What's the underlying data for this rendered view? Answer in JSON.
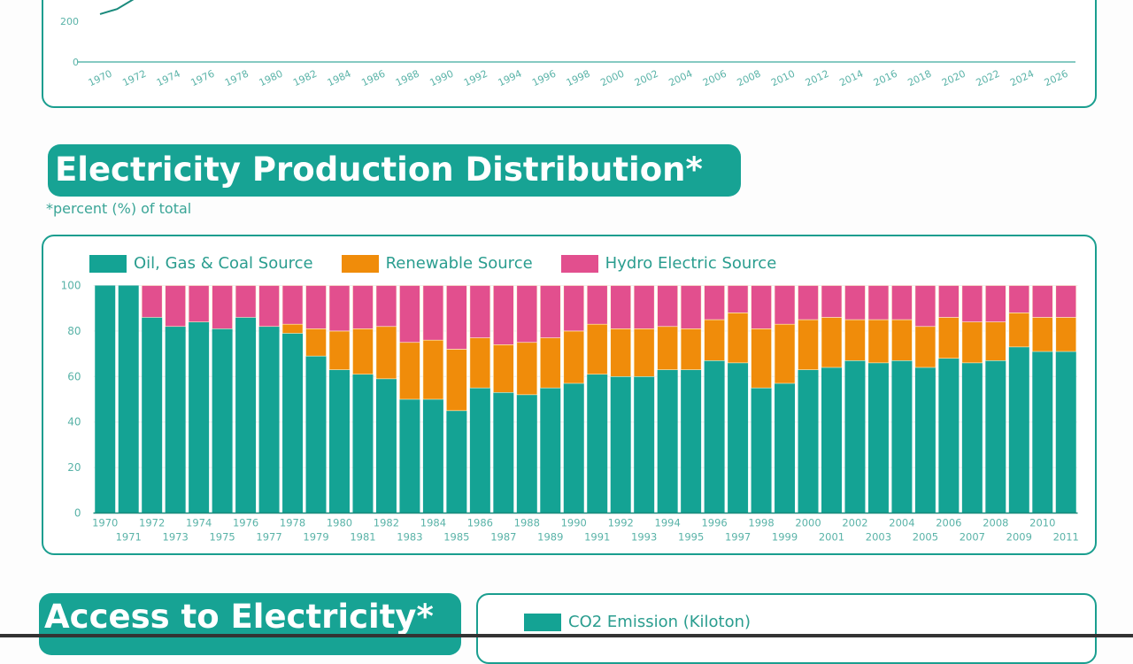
{
  "top_chart": {
    "chart_data": {
      "type": "line",
      "y_ticks": [
        0,
        200
      ],
      "x_ticks": [
        "1970",
        "1972",
        "1974",
        "1976",
        "1978",
        "1980",
        "1982",
        "1984",
        "1986",
        "1988",
        "1990",
        "1992",
        "1994",
        "1996",
        "1998",
        "2000",
        "2002",
        "2004",
        "2006",
        "2008",
        "2010",
        "2012",
        "2014",
        "2016",
        "2018",
        "2020",
        "2022",
        "2024",
        "2026"
      ],
      "points": [
        [
          1970,
          235
        ],
        [
          1971,
          260
        ],
        [
          1972,
          310
        ]
      ],
      "color": "#1a8a7c"
    }
  },
  "distribution": {
    "title": "Electricity Production Distribution*",
    "subtitle": "*percent (%) of total",
    "chart_data": {
      "type": "bar",
      "stacked": true,
      "ylim": [
        0,
        100
      ],
      "y_ticks": [
        0,
        20,
        40,
        60,
        80,
        100
      ],
      "categories": [
        "1970",
        "1971",
        "1972",
        "1973",
        "1974",
        "1975",
        "1976",
        "1977",
        "1978",
        "1979",
        "1980",
        "1981",
        "1982",
        "1983",
        "1984",
        "1985",
        "1986",
        "1987",
        "1988",
        "1989",
        "1990",
        "1991",
        "1992",
        "1993",
        "1994",
        "1995",
        "1996",
        "1997",
        "1998",
        "1999",
        "2000",
        "2001",
        "2002",
        "2003",
        "2004",
        "2005",
        "2006",
        "2007",
        "2008",
        "2009",
        "2010",
        "2011"
      ],
      "series": [
        {
          "name": "Oil, Gas & Coal Source",
          "color": "#14a394",
          "values": [
            100,
            100,
            86,
            82,
            84,
            81,
            86,
            82,
            79,
            69,
            63,
            61,
            59,
            50,
            50,
            45,
            55,
            53,
            52,
            55,
            57,
            61,
            60,
            60,
            63,
            63,
            67,
            66,
            55,
            57,
            63,
            64,
            67,
            66,
            67,
            64,
            68,
            66,
            67,
            73,
            71,
            71
          ]
        },
        {
          "name": "Renewable Source",
          "color": "#f08c0a",
          "values": [
            0,
            0,
            0,
            0,
            0,
            0,
            0,
            0,
            4,
            12,
            17,
            20,
            23,
            25,
            26,
            27,
            22,
            21,
            23,
            22,
            23,
            22,
            21,
            21,
            19,
            18,
            18,
            22,
            26,
            26,
            22,
            22,
            18,
            19,
            18,
            18,
            18,
            18,
            17,
            15,
            15,
            15
          ]
        },
        {
          "name": "Hydro Electric Source",
          "color": "#e24f8e",
          "values": [
            0,
            0,
            14,
            18,
            16,
            19,
            14,
            18,
            17,
            19,
            20,
            19,
            18,
            25,
            24,
            28,
            23,
            26,
            25,
            23,
            20,
            17,
            19,
            19,
            18,
            19,
            15,
            12,
            19,
            17,
            15,
            14,
            15,
            15,
            15,
            18,
            14,
            16,
            16,
            12,
            14,
            14
          ]
        }
      ]
    }
  },
  "access": {
    "title": "Access to Electricity*",
    "legend": "CO2 Emission (Kiloton)",
    "legend_color": "#14a394"
  }
}
